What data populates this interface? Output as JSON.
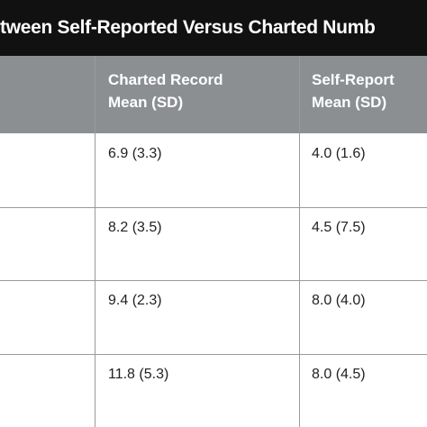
{
  "table": {
    "title": "tween Self-Reported Versus Charted Numb",
    "headers": [
      "Charted Record Mean (SD)",
      "Self-Report Mean (SD)"
    ],
    "rows": [
      [
        "6.9 (3.3)",
        "4.0 (1.6)"
      ],
      [
        "8.2 (3.5)",
        "4.5 (7.5)"
      ],
      [
        "9.4 (2.3)",
        "8.0 (4.0)"
      ],
      [
        "11.8 (5.3)",
        "8.0 (4.5)"
      ]
    ]
  }
}
